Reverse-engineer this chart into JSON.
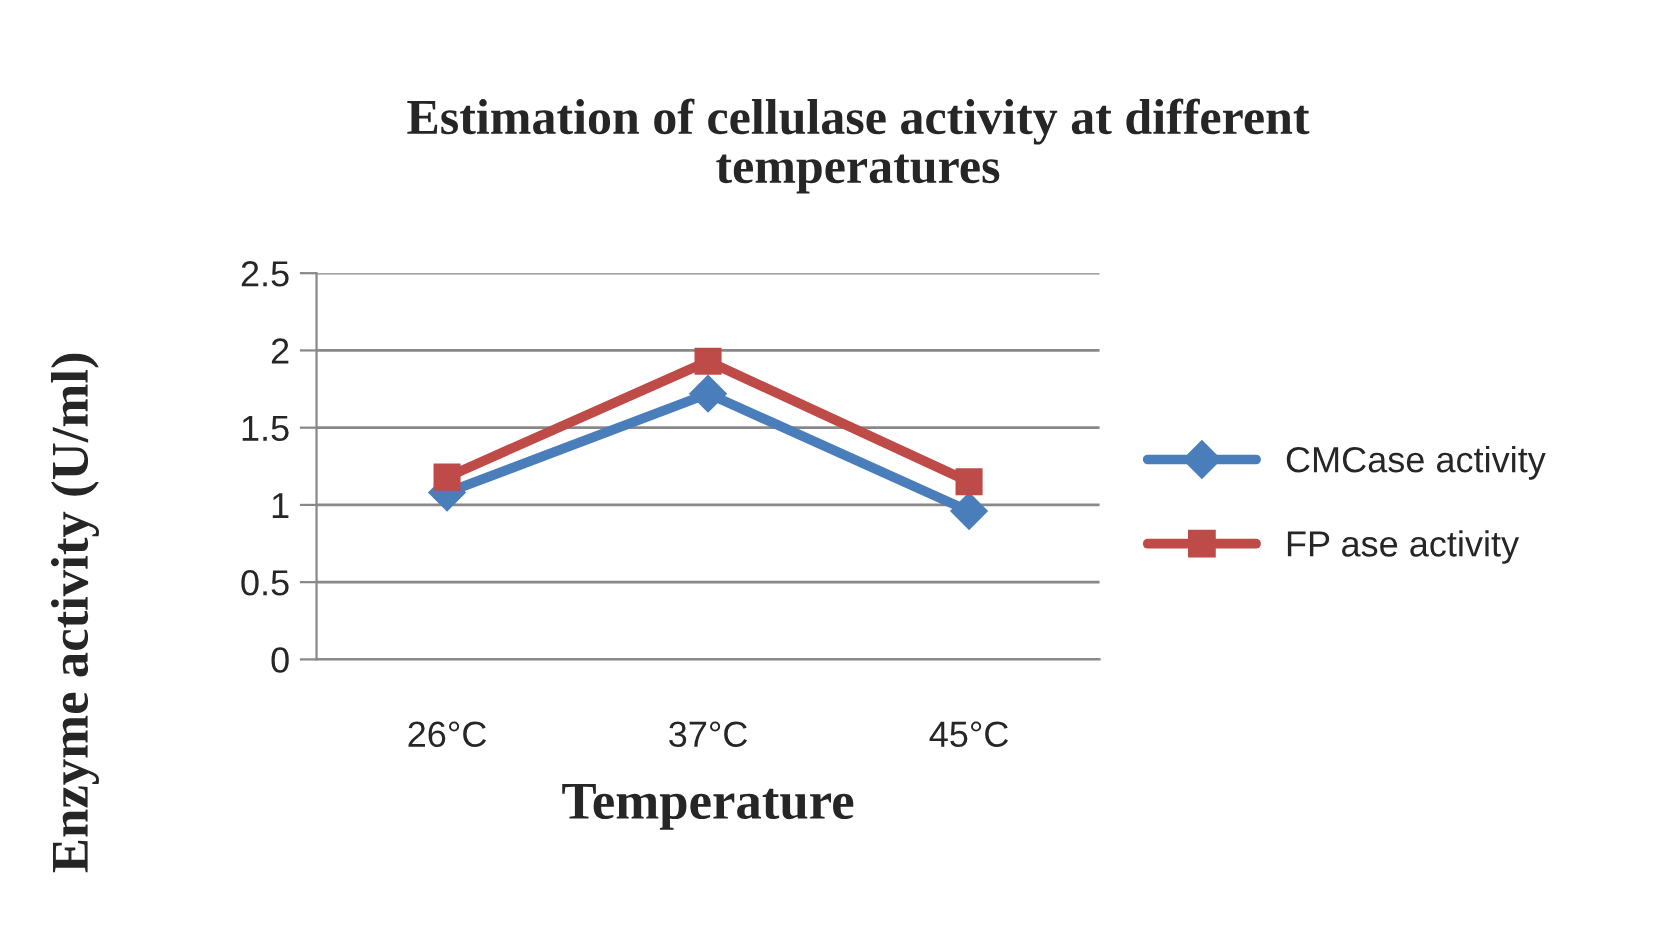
{
  "chart_data": {
    "type": "line",
    "title": "Estimation of cellulase activity at different temperatures",
    "xlabel": "Temperature",
    "ylabel": "Enzyme activity (U/ml)",
    "categories": [
      "26°C",
      "37°C",
      "45°C"
    ],
    "series": [
      {
        "name": "CMCase activity",
        "color": "#4a7ebb",
        "marker": "diamond",
        "values": [
          1.08,
          1.72,
          0.96
        ]
      },
      {
        "name": "FP ase activity",
        "color": "#be4b48",
        "marker": "square",
        "values": [
          1.18,
          1.93,
          1.15
        ]
      }
    ],
    "ylim": [
      0,
      2.5
    ],
    "yticks": [
      0,
      0.5,
      1,
      1.5,
      2,
      2.5
    ],
    "grid": "y",
    "legend": "right"
  }
}
